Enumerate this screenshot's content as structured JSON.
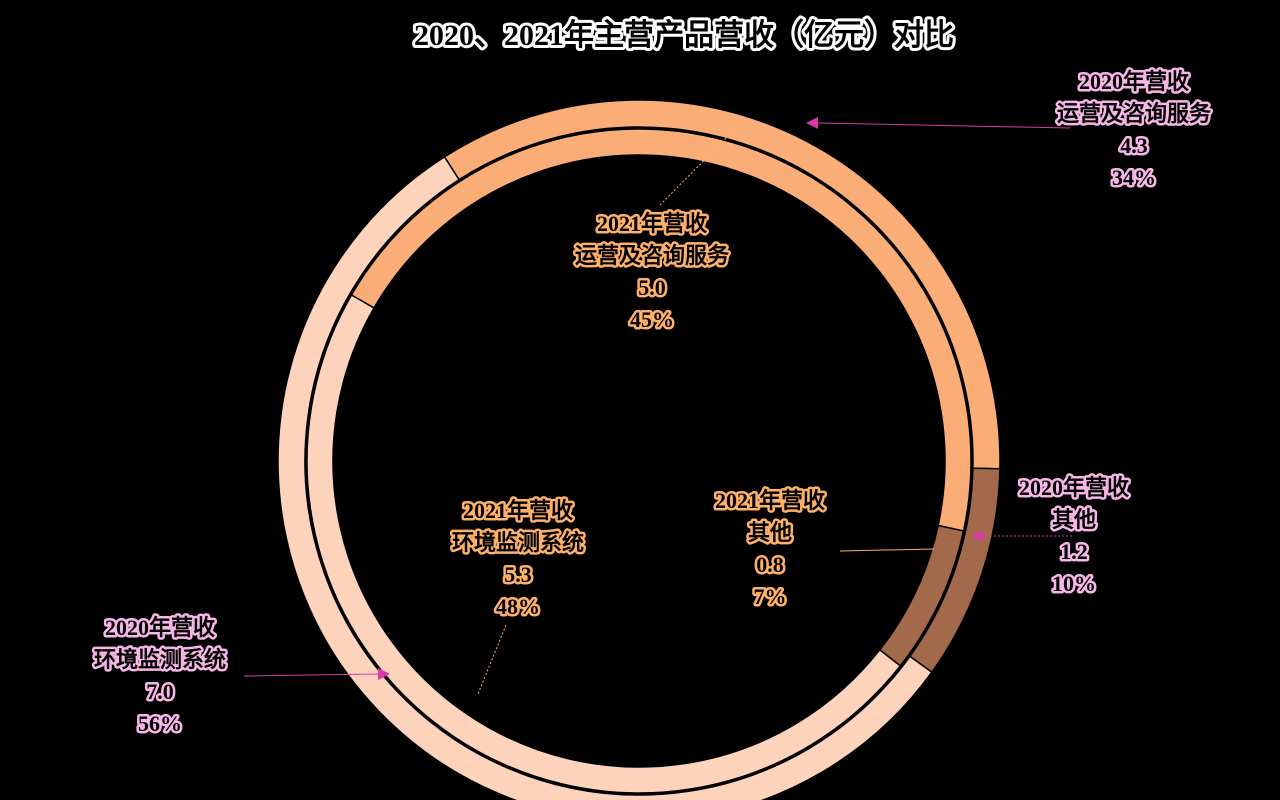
{
  "chart_data": {
    "type": "doughnut",
    "title": "2020、2021年主营产品营收（亿元）对比",
    "categories": [
      "运营及咨询服务",
      "其他",
      "环境监测系统"
    ],
    "colors": [
      "#fbad78",
      "#a2694a",
      "#fdd3bb"
    ],
    "series": [
      {
        "name": "2020年营收",
        "values": [
          4.3,
          1.2,
          7.0
        ],
        "value_labels": [
          "4.3",
          "1.2",
          "7.0"
        ],
        "percents": [
          34,
          10,
          56
        ],
        "percent_labels": [
          "34%",
          "10%",
          "56%"
        ]
      },
      {
        "name": "2021年营收",
        "values": [
          5.0,
          0.8,
          5.3
        ],
        "value_labels": [
          "5.0",
          "0.8",
          "5.3"
        ],
        "percents": [
          45,
          7,
          48
        ],
        "percent_labels": [
          "45%",
          "7%",
          "48%"
        ]
      }
    ]
  }
}
